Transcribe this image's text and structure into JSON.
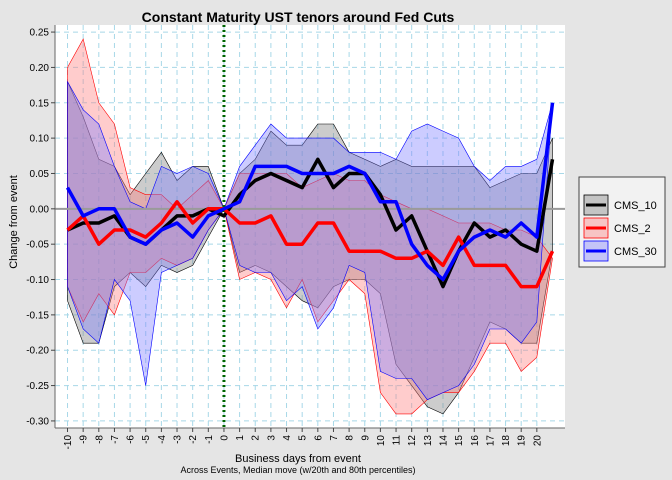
{
  "chart_data": {
    "type": "line",
    "title": "Constant Maturity UST tenors around Fed Cuts",
    "xlabel": "Business days from event",
    "caption": "Across Events, Median move (w/20th and 80th percentiles)",
    "ylabel": "Change from event",
    "x": [
      -10,
      -9,
      -8,
      -7,
      -6,
      -5,
      -4,
      -3,
      -2,
      -1,
      0,
      1,
      2,
      3,
      4,
      5,
      6,
      7,
      8,
      9,
      10,
      11,
      12,
      13,
      14,
      15,
      16,
      17,
      18,
      19,
      20,
      21
    ],
    "xtick_labels": [
      "-10",
      "-9",
      "-8",
      "-7",
      "-6",
      "-5",
      "-4",
      "-3",
      "-2",
      "-1",
      "0",
      "1",
      "2",
      "3",
      "4",
      "5",
      "6",
      "7",
      "8",
      "9",
      "10",
      "11",
      "12",
      "13",
      "14",
      "15",
      "16",
      "17",
      "18",
      "19",
      "20"
    ],
    "ylim": [
      -0.31,
      0.26
    ],
    "yticks": [
      -0.3,
      -0.25,
      -0.2,
      -0.15,
      -0.1,
      -0.05,
      0.0,
      0.05,
      0.1,
      0.15,
      0.2,
      0.25
    ],
    "ytick_labels": [
      "-0.30",
      "-0.25",
      "-0.20",
      "-0.15",
      "-0.10",
      "-0.05",
      "0.00",
      "0.05",
      "0.10",
      "0.15",
      "0.20",
      "0.25"
    ],
    "vline_x": 0,
    "legend_position": "right",
    "grid": true,
    "series": [
      {
        "name": "CMS_10",
        "color": "#000000",
        "fill": "#7f7f7f",
        "median": [
          -0.03,
          -0.02,
          -0.02,
          -0.01,
          -0.04,
          -0.05,
          -0.03,
          -0.01,
          -0.01,
          0.0,
          -0.01,
          0.02,
          0.04,
          0.05,
          0.04,
          0.03,
          0.07,
          0.03,
          0.05,
          0.05,
          0.02,
          -0.03,
          -0.01,
          -0.06,
          -0.11,
          -0.06,
          -0.02,
          -0.04,
          -0.03,
          -0.05,
          -0.06,
          0.07
        ],
        "p20": [
          -0.13,
          -0.19,
          -0.19,
          -0.11,
          -0.09,
          -0.11,
          -0.08,
          -0.09,
          -0.08,
          -0.04,
          0.0,
          -0.09,
          -0.08,
          -0.09,
          -0.11,
          -0.13,
          -0.14,
          -0.11,
          -0.1,
          -0.1,
          -0.12,
          -0.22,
          -0.25,
          -0.28,
          -0.29,
          -0.26,
          -0.21,
          -0.16,
          -0.17,
          -0.19,
          -0.19,
          -0.06
        ],
        "p80": [
          0.18,
          0.13,
          0.07,
          0.06,
          0.02,
          0.05,
          0.08,
          0.04,
          0.06,
          0.06,
          0.0,
          0.05,
          0.07,
          0.11,
          0.09,
          0.09,
          0.12,
          0.12,
          0.08,
          0.07,
          0.06,
          0.07,
          0.06,
          0.06,
          0.06,
          0.06,
          0.06,
          0.03,
          0.04,
          0.05,
          0.05,
          0.1
        ]
      },
      {
        "name": "CMS_2",
        "color": "#ff0000",
        "fill": "#ff8080",
        "median": [
          -0.03,
          -0.01,
          -0.05,
          -0.03,
          -0.03,
          -0.04,
          -0.02,
          0.01,
          -0.02,
          0.0,
          0.0,
          -0.02,
          -0.02,
          -0.01,
          -0.05,
          -0.05,
          -0.02,
          -0.02,
          -0.06,
          -0.06,
          -0.06,
          -0.07,
          -0.07,
          -0.06,
          -0.08,
          -0.04,
          -0.08,
          -0.08,
          -0.08,
          -0.11,
          -0.11,
          -0.06
        ],
        "p20": [
          -0.11,
          -0.16,
          -0.12,
          -0.15,
          -0.09,
          -0.09,
          -0.07,
          -0.08,
          -0.07,
          -0.03,
          0.0,
          -0.1,
          -0.09,
          -0.1,
          -0.14,
          -0.1,
          -0.16,
          -0.13,
          -0.1,
          -0.12,
          -0.26,
          -0.29,
          -0.29,
          -0.27,
          -0.26,
          -0.26,
          -0.23,
          -0.19,
          -0.19,
          -0.23,
          -0.21,
          -0.07
        ],
        "p80": [
          0.2,
          0.24,
          0.15,
          0.12,
          0.03,
          0.02,
          0.02,
          0.0,
          0.02,
          0.04,
          0.0,
          0.05,
          0.05,
          0.05,
          0.05,
          0.03,
          0.04,
          0.05,
          0.04,
          0.04,
          0.02,
          0.01,
          0.0,
          0.0,
          -0.01,
          -0.02,
          -0.02,
          -0.02,
          -0.03,
          -0.03,
          -0.04,
          -0.07
        ]
      },
      {
        "name": "CMS_30",
        "color": "#0000ff",
        "fill": "#8080ff",
        "median": [
          0.03,
          -0.01,
          0.0,
          0.0,
          -0.04,
          -0.05,
          -0.03,
          -0.02,
          -0.04,
          -0.01,
          0.0,
          0.01,
          0.06,
          0.06,
          0.06,
          0.05,
          0.05,
          0.05,
          0.06,
          0.05,
          0.01,
          0.01,
          -0.05,
          -0.08,
          -0.1,
          -0.06,
          -0.04,
          -0.03,
          -0.04,
          -0.02,
          -0.04,
          0.15
        ],
        "p20": [
          -0.11,
          -0.17,
          -0.19,
          -0.1,
          -0.13,
          -0.25,
          -0.09,
          -0.08,
          -0.07,
          -0.03,
          0.0,
          -0.08,
          -0.09,
          -0.09,
          -0.13,
          -0.11,
          -0.17,
          -0.14,
          -0.08,
          -0.09,
          -0.23,
          -0.24,
          -0.24,
          -0.27,
          -0.26,
          -0.25,
          -0.22,
          -0.17,
          -0.17,
          -0.19,
          -0.16,
          0.15
        ],
        "p80": [
          0.18,
          0.14,
          0.12,
          0.06,
          0.01,
          0.0,
          0.06,
          0.05,
          0.06,
          0.05,
          0.0,
          0.06,
          0.09,
          0.12,
          0.1,
          0.1,
          0.1,
          0.1,
          0.08,
          0.08,
          0.08,
          0.07,
          0.11,
          0.12,
          0.11,
          0.1,
          0.06,
          0.04,
          0.06,
          0.06,
          0.07,
          0.15
        ]
      }
    ]
  }
}
